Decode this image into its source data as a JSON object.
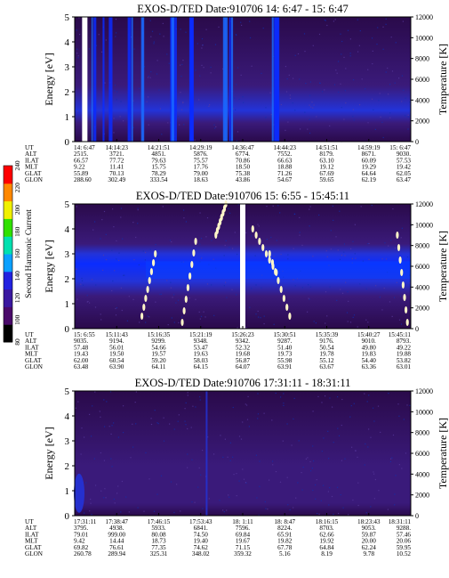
{
  "colors": {
    "background": "#2a0a4a",
    "low": "#3a1a7a",
    "mid": "#2333d8",
    "high": "#0a2cff",
    "hot": "#fff6c8"
  },
  "colorbar": {
    "label": "Second Harmonic Current",
    "ticks": [
      "80",
      "100",
      "120",
      "140",
      "160",
      "180",
      "200",
      "220",
      "240"
    ],
    "range": [
      80,
      240
    ],
    "colors": [
      "#000000",
      "#4a0a6a",
      "#3a18a0",
      "#2222e0",
      "#0aa0ff",
      "#00e0b0",
      "#30e000",
      "#f0f000",
      "#ff8800",
      "#ff0000"
    ]
  },
  "chart_data": [
    {
      "type": "heatmap",
      "title": "EXOS-D/TED   Date:910706  14: 6:47 - 15: 6:47",
      "ylabel": "Energy [eV]",
      "y2label": "Temperature [K]",
      "ylim": [
        0,
        5
      ],
      "y2lim": [
        0,
        12000
      ],
      "yticks": [
        "0",
        "1",
        "2",
        "3",
        "4",
        "5"
      ],
      "y2ticks": [
        "0",
        "2000",
        "4000",
        "6000",
        "8000",
        "10000",
        "12000"
      ],
      "row_labels": [
        "UT",
        "ALT",
        "ILAT",
        "MLT",
        "GLAT",
        "GLON"
      ],
      "columns": [
        [
          "14: 6:47",
          "2515.",
          "66.57",
          "9.22",
          "55.89",
          "288.60"
        ],
        [
          "14:14:23",
          "3721.",
          "77.72",
          "11.41",
          "70.13",
          "302.49"
        ],
        [
          "14:21:51",
          "4851.",
          "79.63",
          "15.75",
          "78.29",
          "333.54"
        ],
        [
          "14:29:19",
          "5876.",
          "75.57",
          "17.76",
          "79.00",
          "18.63"
        ],
        [
          "14:36:47",
          "6774.",
          "70.86",
          "18.50",
          "75.38",
          "43.86"
        ],
        [
          "14:44:23",
          "7552.",
          "66.63",
          "18.88",
          "71.26",
          "54.67"
        ],
        [
          "14:51:51",
          "8179.",
          "63.10",
          "19.12",
          "67.69",
          "59.65"
        ],
        [
          "14:59:19",
          "8671.",
          "60.09",
          "19.29",
          "64.64",
          "62.19"
        ],
        [
          "15: 6:47",
          "9030.",
          "57.53",
          "19.42",
          "62.05",
          "63.47"
        ]
      ],
      "data_gaps": [
        0.03
      ],
      "bright_bands": [
        [
          0.05,
          0.12
        ],
        [
          0.15,
          0.22
        ],
        [
          0.28,
          0.3
        ],
        [
          0.34,
          0.36
        ],
        [
          0.44,
          0.47
        ],
        [
          0.58,
          0.6
        ]
      ]
    },
    {
      "type": "heatmap",
      "title": "EXOS-D/TED   Date:910706  15: 6:55 - 15:45:11",
      "ylabel": "Energy [eV]",
      "y2label": "Temperature [K]",
      "ylim": [
        0,
        5
      ],
      "y2lim": [
        0,
        12000
      ],
      "yticks": [
        "0",
        "1",
        "2",
        "3",
        "4",
        "5"
      ],
      "y2ticks": [
        "0",
        "2000",
        "4000",
        "6000",
        "8000",
        "10000",
        "12000"
      ],
      "row_labels": [
        "UT",
        "ALT",
        "ILAT",
        "MLT",
        "GLAT",
        "GLON"
      ],
      "columns": [
        [
          "15: 6:55",
          "9035.",
          "57.48",
          "19.43",
          "62.00",
          "63.48"
        ],
        [
          "15:11:43",
          "9194.",
          "56.01",
          "19.50",
          "60.54",
          "63.90"
        ],
        [
          "15:16:35",
          "9299.",
          "54.66",
          "19.57",
          "59.20",
          "64.11"
        ],
        [
          "15:21:19",
          "9348.",
          "53.47",
          "19.63",
          "58.03",
          "64.15"
        ],
        [
          "15:26:23",
          "9342.",
          "52.32",
          "19.68",
          "56.87",
          "64.07"
        ],
        [
          "15:30:51",
          "9287.",
          "51.40",
          "19.73",
          "55.98",
          "63.91"
        ],
        [
          "15:35:39",
          "9176.",
          "50.54",
          "19.78",
          "55.12",
          "63.67"
        ],
        [
          "15:40:27",
          "9010.",
          "49.80",
          "19.83",
          "54.40",
          "63.36"
        ],
        [
          "15:45:11",
          "8793.",
          "49.22",
          "19.88",
          "53.82",
          "63.01"
        ]
      ],
      "data_gaps": [
        0.5
      ]
    },
    {
      "type": "heatmap",
      "title": "EXOS-D/TED   Date:910706  17:31:11 - 18:31:11",
      "ylabel": "Energy [eV]",
      "y2label": "Temperature [K]",
      "ylim": [
        0,
        5
      ],
      "y2lim": [
        0,
        12000
      ],
      "yticks": [
        "0",
        "1",
        "2",
        "3",
        "4",
        "5"
      ],
      "y2ticks": [
        "0",
        "2000",
        "4000",
        "6000",
        "8000",
        "10000",
        "12000"
      ],
      "row_labels": [
        "UT",
        "ALT",
        "ILAT",
        "MLT",
        "GLAT",
        "GLON"
      ],
      "columns": [
        [
          "17:31:11",
          "3795.",
          "79.01",
          "9.42",
          "69.82",
          "260.78"
        ],
        [
          "17:38:47",
          "4938.",
          "999.00",
          "14.44",
          "76.61",
          "289.94"
        ],
        [
          "17:46:15",
          "5933.",
          "80.08",
          "18.73",
          "77.35",
          "325.31"
        ],
        [
          "17:53:43",
          "6841.",
          "74.50",
          "19.40",
          "74.62",
          "348.02"
        ],
        [
          "18: 1:11",
          "7596.",
          "69.84",
          "19.67",
          "71.15",
          "359.32"
        ],
        [
          "18: 8:47",
          "8224.",
          "65.91",
          "19.82",
          "67.78",
          "5.16"
        ],
        [
          "18:16:15",
          "8703.",
          "62.66",
          "19.92",
          "64.84",
          "8.19"
        ],
        [
          "18:23:43",
          "9053.",
          "59.87",
          "20.00",
          "62.24",
          "9.78"
        ],
        [
          "18:31:11",
          "9288.",
          "57.46",
          "20.06",
          "59.95",
          "10.52"
        ]
      ],
      "data_gaps": []
    }
  ]
}
